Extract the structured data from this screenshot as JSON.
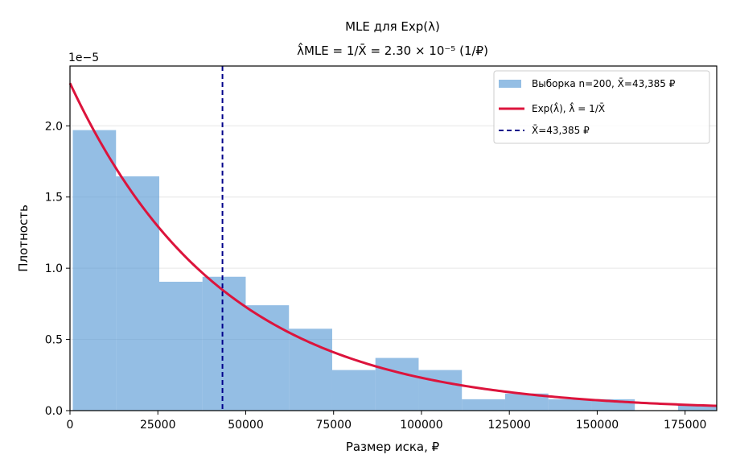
{
  "chart_data": {
    "type": "histogram",
    "title": "MLE для Exp(λ)",
    "subtitle": "λ̂MLE = 1/X̄ = 2.30 × 10⁻⁵ (1/₽)",
    "xlabel": "Размер иска, ₽",
    "ylabel": "Плотность",
    "y_offset_label": "1e−5",
    "xlim": [
      0,
      184000
    ],
    "ylim": [
      0,
      2.42
    ],
    "y_scale": 1e-05,
    "grid": "y",
    "legend_position": "top-right",
    "x_ticks": [
      {
        "value": 0,
        "label": "0"
      },
      {
        "value": 25000,
        "label": "25000"
      },
      {
        "value": 50000,
        "label": "50000"
      },
      {
        "value": 75000,
        "label": "75000"
      },
      {
        "value": 100000,
        "label": "100000"
      },
      {
        "value": 125000,
        "label": "125000"
      },
      {
        "value": 150000,
        "label": "150000"
      },
      {
        "value": 175000,
        "label": "175000"
      }
    ],
    "y_ticks": [
      {
        "value": 0.0,
        "label": "0.0"
      },
      {
        "value": 0.5,
        "label": "0.5"
      },
      {
        "value": 1.0,
        "label": "1.0"
      },
      {
        "value": 1.5,
        "label": "1.5"
      },
      {
        "value": 2.0,
        "label": "2.0"
      }
    ],
    "histogram": {
      "name": "Выборка n=200, X̄=43,385 ₽",
      "color": "#5b9bd5",
      "bins": [
        {
          "x0": 800,
          "x1": 13100,
          "y": 1.97
        },
        {
          "x0": 13100,
          "x1": 25400,
          "y": 1.645
        },
        {
          "x0": 25400,
          "x1": 37700,
          "y": 0.905
        },
        {
          "x0": 37700,
          "x1": 50000,
          "y": 0.94
        },
        {
          "x0": 50000,
          "x1": 62300,
          "y": 0.74
        },
        {
          "x0": 62300,
          "x1": 74600,
          "y": 0.575
        },
        {
          "x0": 74600,
          "x1": 86900,
          "y": 0.285
        },
        {
          "x0": 86900,
          "x1": 99200,
          "y": 0.37
        },
        {
          "x0": 99200,
          "x1": 111500,
          "y": 0.285
        },
        {
          "x0": 111500,
          "x1": 123800,
          "y": 0.08
        },
        {
          "x0": 123800,
          "x1": 136100,
          "y": 0.12
        },
        {
          "x0": 136100,
          "x1": 148400,
          "y": 0.08
        },
        {
          "x0": 148400,
          "x1": 160700,
          "y": 0.08
        },
        {
          "x0": 160700,
          "x1": 173000,
          "y": 0.0
        },
        {
          "x0": 173000,
          "x1": 185300,
          "y": 0.04
        }
      ]
    },
    "curve": {
      "name": "Exp(λ̂), λ̂ = 1/X̄",
      "color": "#dc143c",
      "lambda": 2.3e-05
    },
    "mean_line": {
      "name": "X̄=43,385 ₽",
      "color": "#00008b",
      "x": 43385
    }
  }
}
